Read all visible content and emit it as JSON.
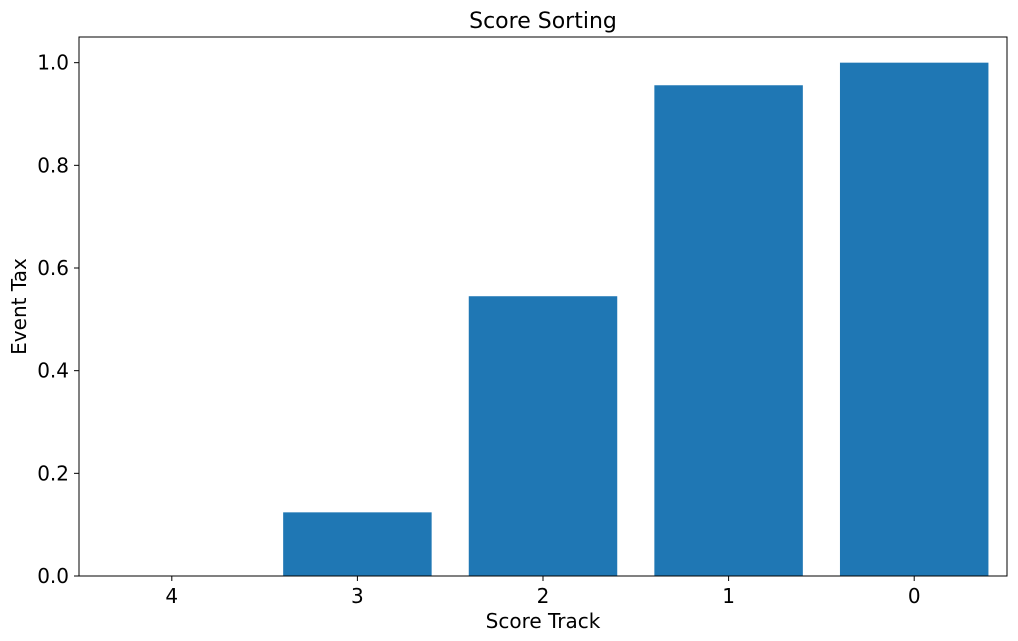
{
  "chart_data": {
    "type": "bar",
    "title": "Score Sorting",
    "xlabel": "Score Track",
    "ylabel": "Event Tax",
    "categories": [
      "4",
      "3",
      "2",
      "1",
      "0"
    ],
    "values": [
      0.0,
      0.124,
      0.545,
      0.956,
      1.0
    ],
    "ylim": [
      0,
      1.05
    ],
    "yticks": [
      "0.0",
      "0.2",
      "0.4",
      "0.6",
      "0.8",
      "1.0"
    ],
    "bar_color": "#1f77b4",
    "grid": false,
    "legend": "none"
  }
}
